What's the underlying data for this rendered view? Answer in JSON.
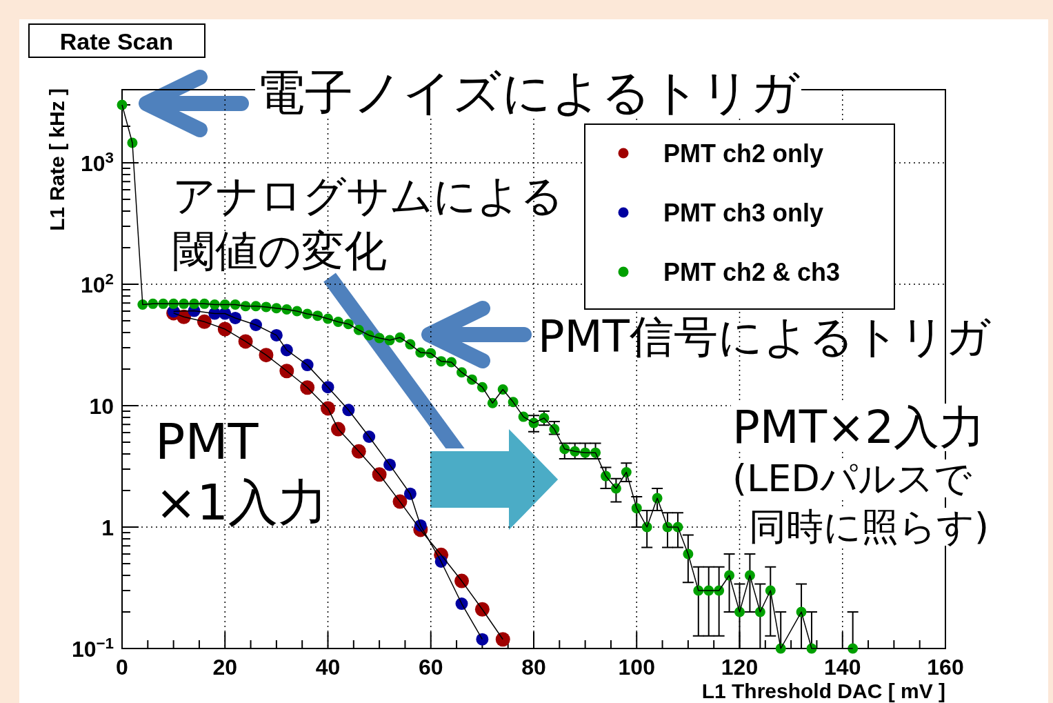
{
  "chart_data": {
    "type": "line",
    "title": "Rate Scan",
    "xlabel": "L1 Threshold DAC [ mV ]",
    "ylabel": "L1 Rate [ kHz ]",
    "xlim": [
      0,
      160
    ],
    "xticks": [
      0,
      20,
      40,
      60,
      80,
      100,
      120,
      140,
      160
    ],
    "ylim": [
      0.1,
      4000
    ],
    "yticks": [
      {
        "value": 0.1,
        "label": "10$^{−1}$"
      },
      1,
      10,
      {
        "value": 100,
        "label": "10$^{2}$"
      },
      {
        "value": 1000,
        "label": "10$^{3}$"
      }
    ],
    "log": "y",
    "grid": true,
    "legend": "top right",
    "marker": "circle",
    "line_style": "solid",
    "series": [
      {
        "name": "PMT ch2 only",
        "color": "#a00000",
        "x": [
          10,
          12,
          16,
          20,
          24,
          28,
          32,
          36,
          40,
          42,
          46,
          50,
          54,
          58,
          62,
          66,
          70,
          74
        ],
        "values": [
          57.8,
          53.9,
          49.1,
          42.7,
          33.8,
          26.1,
          19.3,
          14.1,
          9.5,
          6.4,
          4.2,
          2.71,
          1.62,
          0.95,
          0.59,
          0.36,
          0.21,
          0.119
        ]
      },
      {
        "name": "PMT ch3 only",
        "color": "#0000a0",
        "x": [
          10,
          14,
          18,
          20,
          22,
          26,
          30,
          32,
          36,
          40,
          44,
          48,
          52,
          56,
          58,
          62,
          66,
          70
        ],
        "values": [
          59.7,
          60.4,
          57.3,
          57.3,
          52.7,
          46.2,
          38,
          28.7,
          21.6,
          14.2,
          9.2,
          5.55,
          3.26,
          1.88,
          1.03,
          0.52,
          0.234,
          0.119
        ]
      },
      {
        "name": "PMT ch2 & ch3",
        "color": "#00a000",
        "x": [
          0,
          2,
          4,
          6,
          8,
          10,
          12,
          14,
          16,
          18,
          20,
          22,
          24,
          26,
          28,
          30,
          32,
          34,
          36,
          38,
          40,
          42,
          44,
          46,
          48,
          50,
          52,
          54,
          56,
          58,
          60,
          62,
          64,
          66,
          68,
          70,
          72,
          74,
          76,
          78,
          80,
          82,
          84,
          86,
          88,
          90,
          92,
          94,
          96,
          98,
          100,
          102,
          104,
          106,
          108,
          110,
          112,
          114,
          116,
          118,
          120,
          122,
          124,
          126,
          128,
          132,
          134,
          142
        ],
        "values": [
          3000,
          1460,
          68,
          69,
          69,
          69,
          69,
          69,
          69,
          68,
          68,
          68,
          66,
          66,
          65,
          63.5,
          62,
          60,
          57,
          55,
          52,
          49,
          47,
          42,
          38,
          36,
          34.6,
          36.4,
          32,
          27.4,
          27,
          23.2,
          22.8,
          18.8,
          16.4,
          14.2,
          10.5,
          13.6,
          10.7,
          8.1,
          7.2,
          7.9,
          6.4,
          4.4,
          4.2,
          4.1,
          4.1,
          2.63,
          2.08,
          2.83,
          1.43,
          1.0,
          1.73,
          1.0,
          1.0,
          0.6,
          0.3,
          0.3,
          0.3,
          0.4,
          0.2,
          0.4,
          0.2,
          0.3,
          0.1,
          0.2,
          0.1,
          0.1
        ],
        "errors": [
          null,
          null,
          null,
          null,
          null,
          null,
          null,
          null,
          null,
          null,
          null,
          null,
          null,
          null,
          null,
          null,
          null,
          null,
          null,
          null,
          null,
          null,
          null,
          null,
          null,
          null,
          null,
          null,
          null,
          null,
          null,
          null,
          null,
          null,
          null,
          null,
          null,
          null,
          null,
          null,
          [
            6.1,
            8.3
          ],
          [
            6.9,
            9.0
          ],
          [
            5.8,
            7.4
          ],
          [
            3.65,
            4.9
          ],
          [
            3.65,
            4.9
          ],
          [
            3.65,
            4.9
          ],
          [
            3.65,
            4.9
          ],
          [
            2.08,
            3.1
          ],
          [
            1.61,
            2.51
          ],
          [
            2.37,
            3.36
          ],
          [
            1.0,
            1.78
          ],
          [
            0.68,
            1.37
          ],
          [
            1.37,
            2.08
          ],
          [
            0.68,
            1.31
          ],
          [
            0.68,
            1.31
          ],
          [
            0.35,
            0.86
          ],
          [
            0.127,
            0.47
          ],
          [
            0.127,
            0.47
          ],
          [
            0.127,
            0.47
          ],
          [
            0.2,
            0.6
          ],
          [
            0.1,
            0.34
          ],
          [
            0.2,
            0.6
          ],
          [
            0.1,
            0.34
          ],
          [
            0.127,
            0.47
          ],
          [
            0.1,
            0.2
          ],
          [
            0.1,
            0.34
          ],
          [
            0.1,
            0.2
          ],
          [
            0.1,
            0.2
          ]
        ]
      }
    ],
    "annotations": [
      "電子ノイズによるトリガ",
      "アナログサムによる",
      "閾値の変化",
      "PMT信号によるトリガ",
      "PMT\n×1入力",
      "PMT×2入力",
      "(LEDパルスで",
      "同時に照らす)"
    ]
  }
}
